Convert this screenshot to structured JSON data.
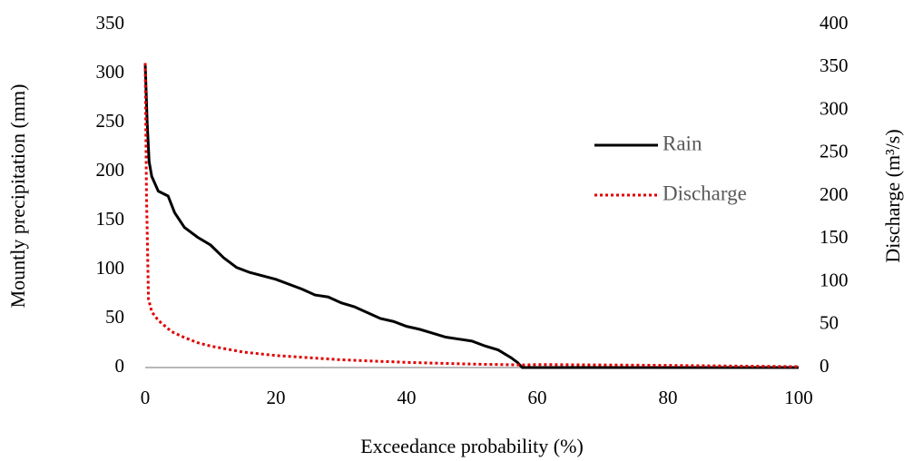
{
  "chart_data": {
    "type": "line",
    "xlabel": "Exceedance probability (%)",
    "ylabel": "Mountly precipitation (mm)",
    "y2label": "Discharge (m³/s)",
    "xlim": [
      0,
      100
    ],
    "xticks": [
      0,
      20,
      40,
      60,
      80,
      100
    ],
    "ylim": [
      0,
      350
    ],
    "yticks": [
      0,
      50,
      100,
      150,
      200,
      250,
      300,
      350
    ],
    "y2lim": [
      0,
      400
    ],
    "y2ticks": [
      0,
      50,
      100,
      150,
      200,
      250,
      300,
      350,
      400
    ],
    "grid": false,
    "legend": "right",
    "series": [
      {
        "name": "Rain",
        "color": "#000000",
        "style": "solid",
        "axis": "y",
        "x": [
          0,
          0.3,
          0.6,
          1,
          2,
          3.5,
          4.5,
          6,
          8,
          10,
          12,
          14,
          16,
          20,
          24,
          26,
          28,
          30,
          32,
          34,
          36,
          38,
          40,
          42,
          44,
          46,
          48,
          50,
          52,
          54,
          56,
          57,
          57.7,
          60,
          100
        ],
        "values": [
          310,
          250,
          210,
          195,
          180,
          175,
          158,
          143,
          133,
          125,
          112,
          102,
          97,
          90,
          80,
          74,
          72,
          66,
          62,
          56,
          50,
          47,
          42,
          39,
          35,
          31,
          29,
          27,
          22,
          18,
          10,
          5,
          0,
          0,
          0
        ]
      },
      {
        "name": "Discharge",
        "color": "#e00000",
        "style": "dotted",
        "axis": "y2",
        "x": [
          0,
          0.2,
          0.5,
          1,
          2,
          4,
          6,
          8,
          10,
          15,
          20,
          30,
          40,
          50,
          58,
          60,
          80,
          100
        ],
        "values": [
          355,
          200,
          80,
          65,
          55,
          42,
          35,
          29,
          25,
          18,
          14,
          9,
          6,
          4,
          3,
          3.5,
          2.5,
          1
        ]
      }
    ]
  }
}
